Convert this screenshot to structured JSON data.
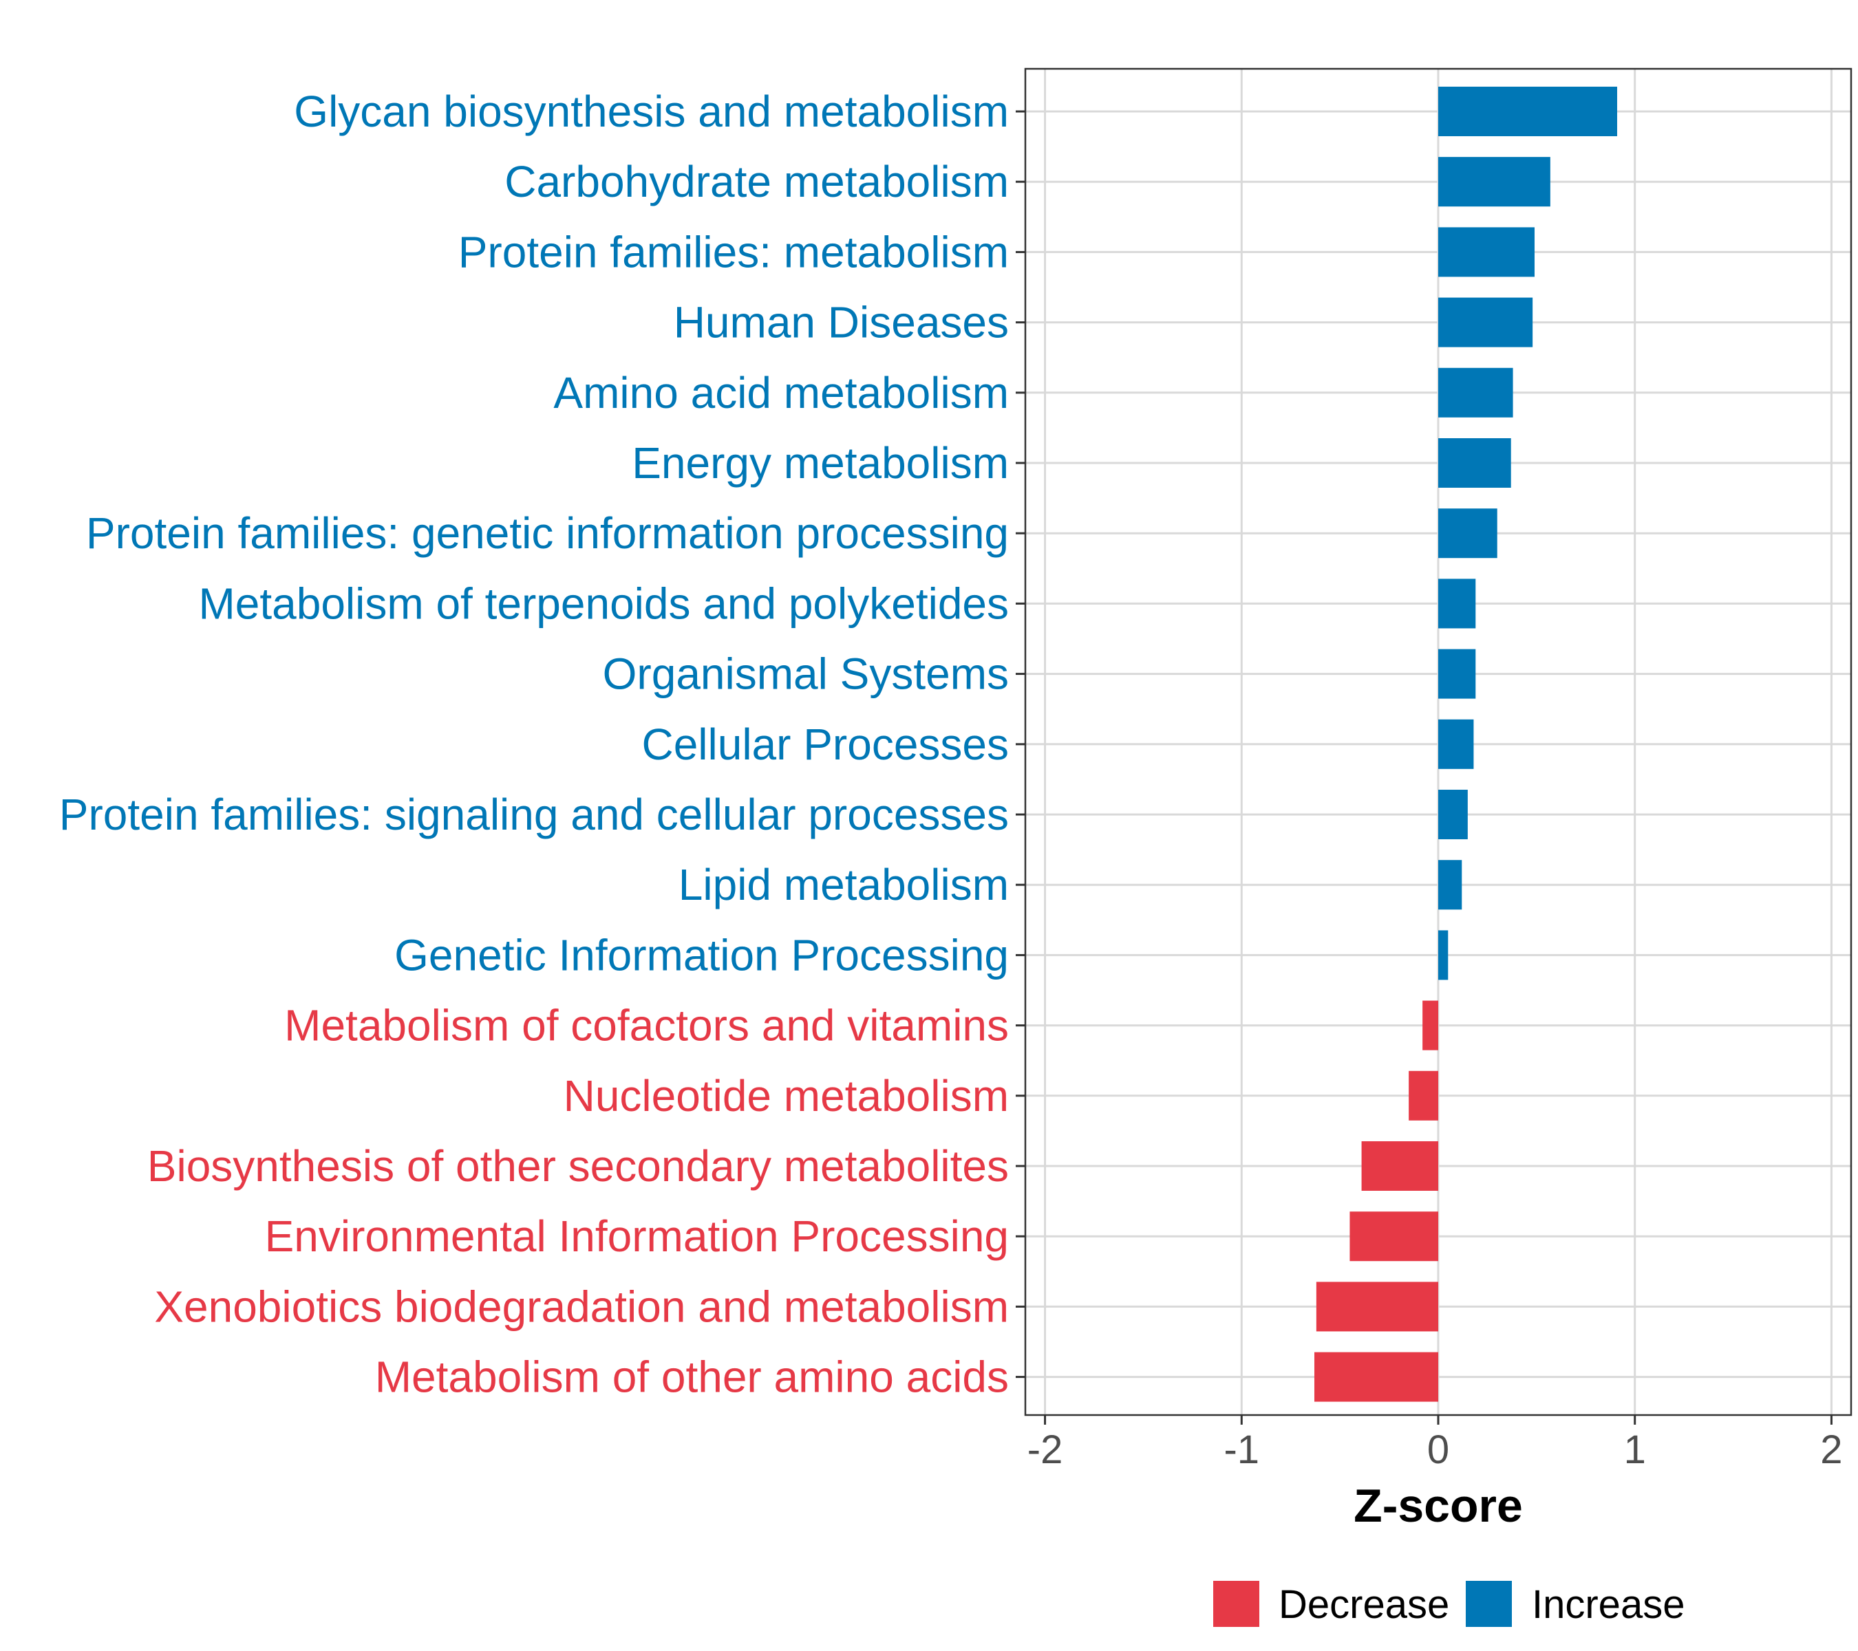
{
  "chart_data": {
    "type": "bar",
    "orientation": "horizontal",
    "xlabel": "Z-score",
    "ylabel": "",
    "xlim": [
      -2.1,
      2.1
    ],
    "xticks": [
      "-2",
      "-1",
      "0",
      "1",
      "2"
    ],
    "grid": true,
    "legend_position": "bottom",
    "series": [
      {
        "name": "Decrease",
        "color": "#E63946"
      },
      {
        "name": "Increase",
        "color": "#0077B6"
      }
    ],
    "bars": [
      {
        "category": "Glycan biosynthesis and metabolism",
        "value": 0.91,
        "group": "Increase"
      },
      {
        "category": "Carbohydrate metabolism",
        "value": 0.57,
        "group": "Increase"
      },
      {
        "category": "Protein families: metabolism",
        "value": 0.49,
        "group": "Increase"
      },
      {
        "category": "Human Diseases",
        "value": 0.48,
        "group": "Increase"
      },
      {
        "category": "Amino acid metabolism",
        "value": 0.38,
        "group": "Increase"
      },
      {
        "category": "Energy metabolism",
        "value": 0.37,
        "group": "Increase"
      },
      {
        "category": "Protein families: genetic information processing",
        "value": 0.3,
        "group": "Increase"
      },
      {
        "category": "Metabolism of terpenoids and polyketides",
        "value": 0.19,
        "group": "Increase"
      },
      {
        "category": "Organismal Systems",
        "value": 0.19,
        "group": "Increase"
      },
      {
        "category": "Cellular Processes",
        "value": 0.18,
        "group": "Increase"
      },
      {
        "category": "Protein families: signaling and cellular processes",
        "value": 0.15,
        "group": "Increase"
      },
      {
        "category": "Lipid metabolism",
        "value": 0.12,
        "group": "Increase"
      },
      {
        "category": "Genetic Information Processing",
        "value": 0.05,
        "group": "Increase"
      },
      {
        "category": "Metabolism of cofactors and vitamins",
        "value": -0.08,
        "group": "Decrease"
      },
      {
        "category": "Nucleotide metabolism",
        "value": -0.15,
        "group": "Decrease"
      },
      {
        "category": "Biosynthesis of other secondary metabolites",
        "value": -0.39,
        "group": "Decrease"
      },
      {
        "category": "Environmental Information Processing",
        "value": -0.45,
        "group": "Decrease"
      },
      {
        "category": "Xenobiotics biodegradation and metabolism",
        "value": -0.62,
        "group": "Decrease"
      },
      {
        "category": "Metabolism of other amino acids",
        "value": -0.63,
        "group": "Decrease"
      }
    ]
  }
}
